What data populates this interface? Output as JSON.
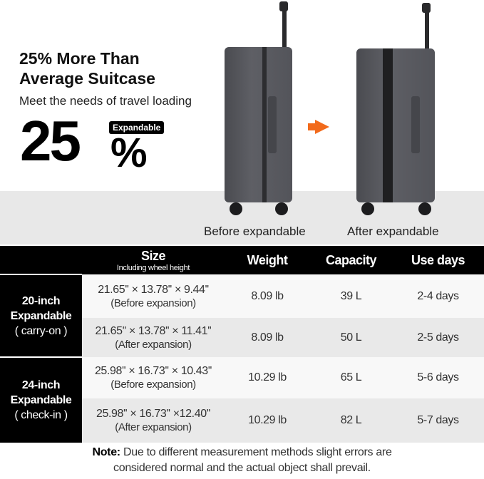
{
  "headline": {
    "line1": "25% More Than",
    "line2": "Average Suitcase",
    "subtitle": "Meet the needs of travel loading",
    "big_number": "25",
    "percent_sign": "%",
    "badge": "Expandable"
  },
  "images": {
    "before_label": "Before expandable",
    "after_label": "After expandable",
    "arrow_color": "#f26a1b",
    "arrow_icon": "arrow-right-icon"
  },
  "table": {
    "headers": {
      "size": "Size",
      "size_sub": "Including wheel height",
      "weight": "Weight",
      "capacity": "Capacity",
      "use_days": "Use days"
    },
    "groups": [
      {
        "line1": "20-inch",
        "line2": "Expandable",
        "line3": "( carry-on )"
      },
      {
        "line1": "24-inch",
        "line2": "Expandable",
        "line3": "( check-in )"
      }
    ],
    "rows": [
      {
        "size": "21.65'' × 13.78'' × 9.44''",
        "state": "(Before expansion)",
        "weight": "8.09 lb",
        "capacity": "39 L",
        "days": "2-4 days"
      },
      {
        "size": "21.65'' × 13.78'' × 11.41''",
        "state": "(After expansion)",
        "weight": "8.09 lb",
        "capacity": "50 L",
        "days": "2-5 days"
      },
      {
        "size": "25.98'' × 16.73'' × 10.43''",
        "state": "(Before expansion)",
        "weight": "10.29 lb",
        "capacity": "65 L",
        "days": "5-6 days"
      },
      {
        "size": "25.98'' × 16.73'' ×12.40''",
        "state": "(After expansion)",
        "weight": "10.29 lb",
        "capacity": "82 L",
        "days": "5-7 days"
      }
    ]
  },
  "note": {
    "label": "Note:",
    "line1": " Due to different measurement methods slight errors are",
    "line2": "considered normal and the actual object shall prevail."
  }
}
